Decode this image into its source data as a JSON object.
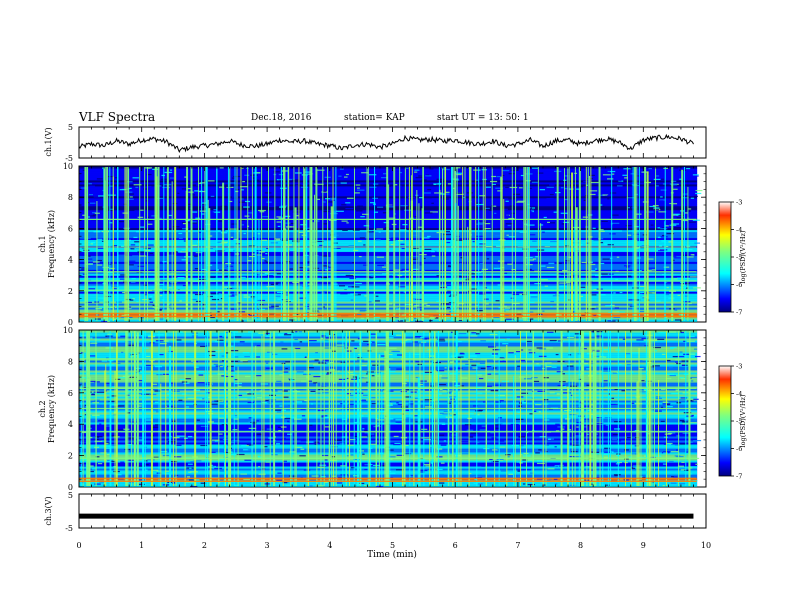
{
  "header": {
    "title": "VLF Spectra",
    "date": "Dec.18, 2016",
    "station": "station= KAP",
    "start": "start  UT =   13: 50: 1"
  },
  "chart_data": [
    {
      "type": "line",
      "panel": "ch1-waveform",
      "ylabel": "ch.1(V)",
      "ylim": [
        -5,
        5
      ],
      "yticks": [
        "5",
        "-5"
      ],
      "xlim": [
        0,
        10
      ],
      "x": [
        0.0,
        0.2,
        0.4,
        0.6,
        0.8,
        1.0,
        1.2,
        1.4,
        1.6,
        1.8,
        2.0,
        2.2,
        2.4,
        2.6,
        2.8,
        3.0,
        3.2,
        3.4,
        3.6,
        3.8,
        4.0,
        4.2,
        4.4,
        4.6,
        4.8,
        5.0,
        5.2,
        5.4,
        5.6,
        5.8,
        6.0,
        6.2,
        6.4,
        6.6,
        6.8,
        7.0,
        7.2,
        7.4,
        7.6,
        7.8,
        8.0,
        8.2,
        8.4,
        8.6,
        8.8,
        9.0,
        9.2,
        9.4,
        9.6,
        9.8
      ],
      "y": [
        -1.5,
        -0.5,
        -1.0,
        0.5,
        -0.5,
        0.8,
        1.2,
        0.2,
        -2.5,
        -1.5,
        -1.0,
        -0.5,
        0.5,
        -0.8,
        -1.2,
        -0.5,
        0.8,
        0.2,
        0.5,
        -0.5,
        -1.0,
        -2.0,
        -0.8,
        -0.5,
        -1.5,
        -0.5,
        1.5,
        0.8,
        1.0,
        0.5,
        0.8,
        0.0,
        -0.5,
        0.5,
        -1.0,
        -0.5,
        0.8,
        -1.2,
        0.5,
        0.8,
        -0.5,
        0.5,
        1.2,
        0.2,
        -2.0,
        0.8,
        1.5,
        1.8,
        1.2,
        -0.5
      ]
    },
    {
      "type": "heatmap",
      "panel": "ch1-spectrogram",
      "ylabel": "ch.1",
      "ylabel2": "Frequency (kHz)",
      "ylim": [
        0,
        10
      ],
      "yticks": [
        "0",
        "2",
        "4",
        "6",
        "8",
        "10"
      ],
      "xlim": [
        0,
        10
      ],
      "colorbar": {
        "label": "log(PSD)(V²/Hz)",
        "min": -7,
        "max": -3,
        "ticks": [
          "-3",
          "-4",
          "-5",
          "-6",
          "-7"
        ]
      }
    },
    {
      "type": "heatmap",
      "panel": "ch2-spectrogram",
      "ylabel": "ch.2",
      "ylabel2": "Frequency (kHz)",
      "ylim": [
        0,
        10
      ],
      "yticks": [
        "0",
        "2",
        "4",
        "6",
        "8",
        "10"
      ],
      "xlim": [
        0,
        10
      ],
      "colorbar": {
        "label": "log(PSD)(V²/Hz)",
        "min": -7,
        "max": -3,
        "ticks": [
          "-3",
          "-4",
          "-5",
          "-6",
          "-7"
        ]
      }
    },
    {
      "type": "line",
      "panel": "ch3-waveform",
      "ylabel": "ch.3(V)",
      "ylim": [
        -5,
        5
      ],
      "yticks": [
        "5",
        "-5"
      ],
      "xlim": [
        0,
        10
      ],
      "x": [
        0,
        9.8
      ],
      "y": [
        -1.5,
        -1.5
      ],
      "xlabel": "Time  (min)",
      "xticks": [
        "0",
        "1",
        "2",
        "3",
        "4",
        "5",
        "6",
        "7",
        "8",
        "9",
        "10"
      ]
    }
  ],
  "colors": {
    "jet": [
      "#00007f",
      "#0000ff",
      "#007fff",
      "#00ffff",
      "#7fff7f",
      "#ffff00",
      "#ff7f00",
      "#ff0000",
      "#7f0000"
    ],
    "axis": "#000000"
  }
}
